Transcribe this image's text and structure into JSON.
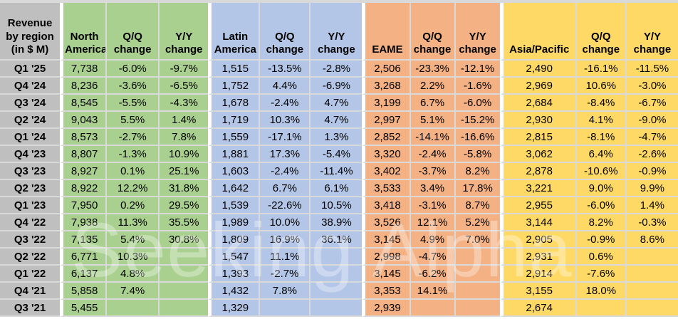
{
  "table": {
    "corner_header": "Revenue\nby region\n(in $ M)",
    "groups": [
      {
        "name": "North America"
      },
      {
        "name": "Latin America"
      },
      {
        "name": "EAME"
      },
      {
        "name": "Asia/Pacific"
      }
    ],
    "sub_headers": [
      "Q/Q change",
      "Y/Y change"
    ],
    "rows": [
      {
        "label": "Q1 '25",
        "cells": [
          "7,738",
          "-6.0%",
          "-9.7%",
          "1,515",
          "-13.5%",
          "-2.8%",
          "2,506",
          "-23.3%",
          "-12.1%",
          "2,490",
          "-16.1%",
          "-11.5%"
        ]
      },
      {
        "label": "Q4 '24",
        "cells": [
          "8,236",
          "-3.6%",
          "-6.5%",
          "1,752",
          "4.4%",
          "-6.9%",
          "3,268",
          "2.2%",
          "-1.6%",
          "2,969",
          "10.6%",
          "-3.0%"
        ]
      },
      {
        "label": "Q3 '24",
        "cells": [
          "8,545",
          "-5.5%",
          "-4.3%",
          "1,678",
          "-2.4%",
          "4.7%",
          "3,199",
          "6.7%",
          "-6.0%",
          "2,684",
          "-8.4%",
          "-6.7%"
        ]
      },
      {
        "label": "Q2 '24",
        "cells": [
          "9,043",
          "5.5%",
          "1.4%",
          "1,719",
          "10.3%",
          "4.7%",
          "2,997",
          "5.1%",
          "-15.2%",
          "2,930",
          "4.1%",
          "-9.0%"
        ]
      },
      {
        "label": "Q1 '24",
        "cells": [
          "8,573",
          "-2.7%",
          "7.8%",
          "1,559",
          "-17.1%",
          "1.3%",
          "2,852",
          "-14.1%",
          "-16.6%",
          "2,815",
          "-8.1%",
          "-4.7%"
        ]
      },
      {
        "label": "Q4 '23",
        "cells": [
          "8,807",
          "-1.3%",
          "10.9%",
          "1,881",
          "17.3%",
          "-5.4%",
          "3,320",
          "-2.4%",
          "-5.8%",
          "3,062",
          "6.4%",
          "-2.6%"
        ]
      },
      {
        "label": "Q3 '23",
        "cells": [
          "8,927",
          "0.1%",
          "25.1%",
          "1,603",
          "-2.4%",
          "-11.4%",
          "3,402",
          "-3.7%",
          "8.2%",
          "2,878",
          "-10.6%",
          "-0.9%"
        ]
      },
      {
        "label": "Q2 '23",
        "cells": [
          "8,922",
          "12.2%",
          "31.8%",
          "1,642",
          "6.7%",
          "6.1%",
          "3,533",
          "3.4%",
          "17.8%",
          "3,221",
          "9.0%",
          "9.9%"
        ]
      },
      {
        "label": "Q1 '23",
        "cells": [
          "7,950",
          "0.2%",
          "29.5%",
          "1,539",
          "-22.6%",
          "10.5%",
          "3,418",
          "-3.1%",
          "8.7%",
          "2,955",
          "-6.0%",
          "1.4%"
        ]
      },
      {
        "label": "Q4 '22",
        "cells": [
          "7,938",
          "11.3%",
          "35.5%",
          "1,989",
          "10.0%",
          "38.9%",
          "3,526",
          "12.1%",
          "5.2%",
          "3,144",
          "8.2%",
          "-0.3%"
        ]
      },
      {
        "label": "Q3 '22",
        "cells": [
          "7,135",
          "5.4%",
          "30.8%",
          "1,809",
          "16.9%",
          "36.1%",
          "3,145",
          "4.9%",
          "7.0%",
          "2,905",
          "-0.9%",
          "8.6%"
        ]
      },
      {
        "label": "Q2 '22",
        "cells": [
          "6,771",
          "10.3%",
          "",
          "1,547",
          "11.1%",
          "",
          "2,998",
          "-4.7%",
          "",
          "2,931",
          "0.6%",
          ""
        ]
      },
      {
        "label": "Q1 '22",
        "cells": [
          "6,137",
          "4.8%",
          "",
          "1,393",
          "-2.7%",
          "",
          "3,145",
          "-6.2%",
          "",
          "2,914",
          "-7.6%",
          ""
        ]
      },
      {
        "label": "Q4 '21",
        "cells": [
          "5,858",
          "7.4%",
          "",
          "1,432",
          "7.8%",
          "",
          "3,353",
          "14.1%",
          "",
          "3,155",
          "18.0%",
          ""
        ]
      },
      {
        "label": "Q3 '21",
        "cells": [
          "5,455",
          "",
          "",
          "1,329",
          "",
          "",
          "2,939",
          "",
          "",
          "2,674",
          "",
          ""
        ]
      }
    ]
  },
  "watermark": "Seeking Alpha",
  "colors": {
    "label_column": "#BFBFBF",
    "north_america": "#A9D08E",
    "latin_america": "#B4C6E7",
    "eame": "#F4B183",
    "asia_pacific": "#FFD966",
    "gridline": "#D9D9D9",
    "group_separator": "#FFFFFF"
  }
}
